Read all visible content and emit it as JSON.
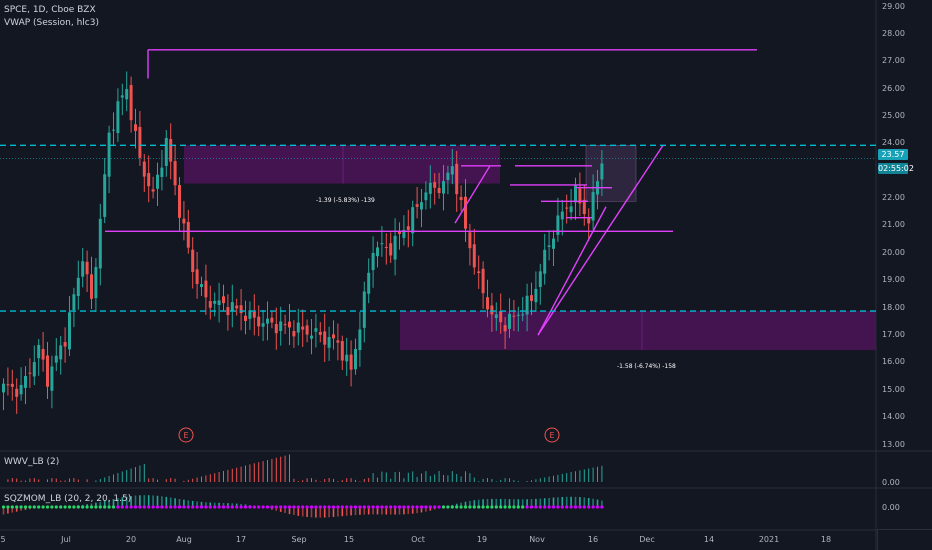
{
  "header": {
    "symbol": "SPCE, 1D, Cboe BZX",
    "indicator": "VWAP (Session, hlc3)"
  },
  "price_axis": {
    "labels": [
      "29.00",
      "28.00",
      "27.00",
      "26.00",
      "25.00",
      "24.00",
      "22.00",
      "21.00",
      "20.00",
      "19.00",
      "18.00",
      "17.00",
      "16.00",
      "15.00",
      "14.00",
      "13.00"
    ],
    "current_price": "23.57",
    "countdown": "02:55:02"
  },
  "time_axis": {
    "labels": [
      "5",
      "Jul",
      "20",
      "Aug",
      "17",
      "Sep",
      "15",
      "Oct",
      "19",
      "Nov",
      "16",
      "Dec",
      "14",
      "2021",
      "18"
    ]
  },
  "annotations": {
    "measure_1": "-1.39 (-5.83%) -139",
    "measure_2": "-1.58 (-6.74%) -158",
    "earnings_marker": "E"
  },
  "pane_wwv": {
    "title": "WWV_LB (2)",
    "axis_label": "0.00"
  },
  "pane_sqz": {
    "title": "SQZMOM_LB (20, 2, 20, 1.5)",
    "axis_label": "0.00"
  },
  "colors": {
    "background": "#131722",
    "up": "#26a69a",
    "down": "#ef5350",
    "drawing": "#e040fb",
    "zone": "#4a1457",
    "cyan_line": "#00bcd4"
  },
  "chart_data": {
    "type": "candlestick",
    "timeframe": "1D",
    "y_range": [
      13,
      29
    ],
    "horizontal_levels": [
      24.05,
      17.98
    ],
    "price_line": 23.57
  }
}
